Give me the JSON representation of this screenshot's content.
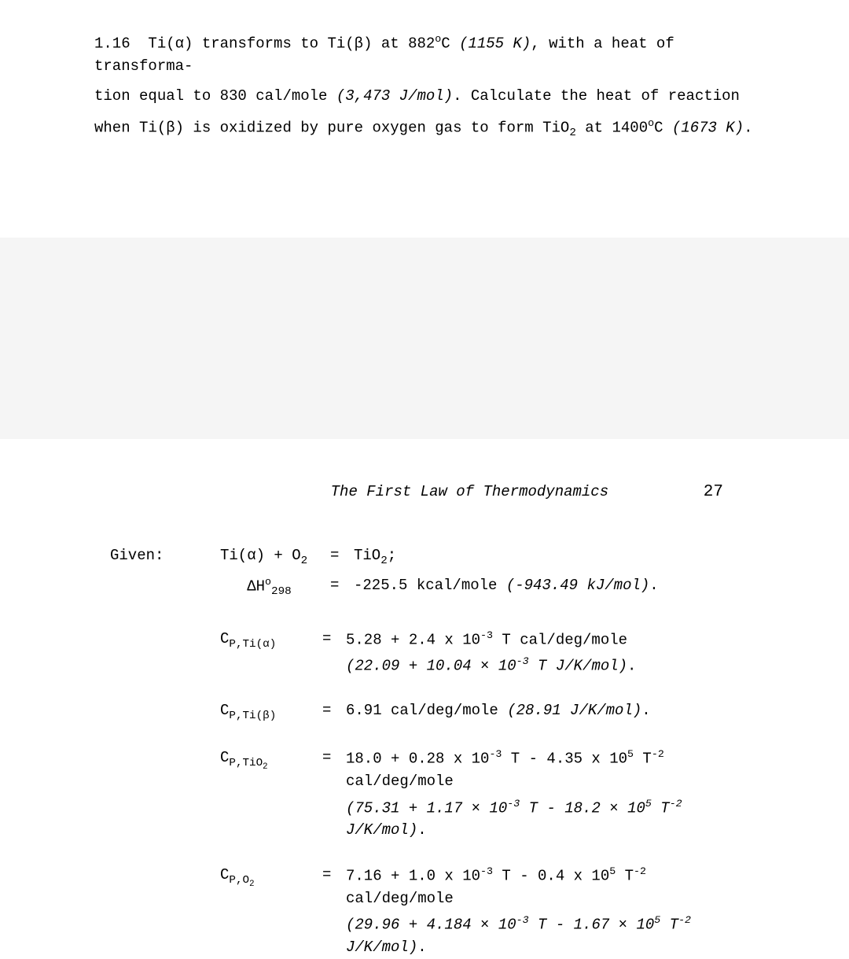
{
  "problem": {
    "number": "1.16",
    "text_line1_a": "Ti(α) transforms to Ti(β)  at 882",
    "text_line1_b": "C ",
    "text_line1_c": "(1155 K)",
    "text_line1_d": ", with a heat of transforma-",
    "text_line2_a": "tion equal  to 830 cal/mole ",
    "text_line2_b": "(3,473 J/mol)",
    "text_line2_c": ".  Calculate the heat of reaction",
    "text_line3_a": "when  Ti(β)  is oxidized by pure oxygen gas to form  TiO",
    "text_line3_b": "  at 1400",
    "text_line3_c": "C ",
    "text_line3_d": "(1673 K)",
    "text_line3_e": "."
  },
  "header": {
    "section_title": "The First Law of Thermodynamics",
    "page_number": "27"
  },
  "given": {
    "label": "Given:",
    "eq1": {
      "lhs_a": "Ti(α) + O",
      "rhs_a": "TiO",
      "rhs_b": ";"
    },
    "eq2": {
      "lhs_a": "ΔH",
      "lhs_sup": "o",
      "lhs_sub": "298",
      "rhs_a": "-225.5 kcal/mole ",
      "rhs_b": "(-943.49 kJ/mol)",
      "rhs_c": "."
    }
  },
  "cp": {
    "tia": {
      "lhs_a": "C",
      "lhs_sub": "P,Ti(α)",
      "rhs_a": "5.28 + 2.4 x 10",
      "rhs_sup1": "-3",
      "rhs_b": " T cal/deg/mole",
      "alt_a": "(22.09 + 10.04 ",
      "alt_x": "×",
      "alt_b": " 10",
      "alt_sup": "-3",
      "alt_c": " T J/K/mol)",
      "alt_d": "."
    },
    "tib": {
      "lhs_a": "C",
      "lhs_sub": "P,Ti(β)",
      "rhs_a": "6.91 cal/deg/mole ",
      "rhs_b": "(28.91 J/K/mol)",
      "rhs_c": "."
    },
    "tio2": {
      "lhs_a": "C",
      "lhs_sub": "P,TiO",
      "lhs_sub2": "2",
      "rhs_a": "18.0 + 0.28 x 10",
      "rhs_sup1": "-3",
      "rhs_b": " T - 4.35 x 10",
      "rhs_sup2": "5",
      "rhs_c": " T",
      "rhs_sup3": "-2",
      "rhs_d": " cal/deg/mole",
      "alt_a": "(75.31 + 1.17 ",
      "alt_x1": "×",
      "alt_b": " 10",
      "alt_sup1": "-3",
      "alt_c": " T - 18.2 ",
      "alt_x2": "×",
      "alt_d": " 10",
      "alt_sup2": "5",
      "alt_e": " T",
      "alt_sup3": "-2",
      "alt_f": " J/K/mol)",
      "alt_g": "."
    },
    "o2": {
      "lhs_a": "C",
      "lhs_sub": "P,O",
      "lhs_sub2": "2",
      "rhs_a": "7.16 + 1.0 x 10",
      "rhs_sup1": "-3",
      "rhs_b": " T - 0.4 x 10",
      "rhs_sup2": "5",
      "rhs_c": " T",
      "rhs_sup3": "-2",
      "rhs_d": " cal/deg/mole",
      "alt_a": "(29.96 + 4.184 ",
      "alt_x1": "×",
      "alt_b": " 10",
      "alt_sup1": "-3",
      "alt_c": " T - 1.67 ",
      "alt_x2": "×",
      "alt_d": " 10",
      "alt_sup2": "5",
      "alt_e": " T",
      "alt_sup3": "-2",
      "alt_f": " J/K/mol)",
      "alt_g": "."
    }
  },
  "symbols": {
    "eq": "=",
    "sub2": "2",
    "supO": "o"
  }
}
